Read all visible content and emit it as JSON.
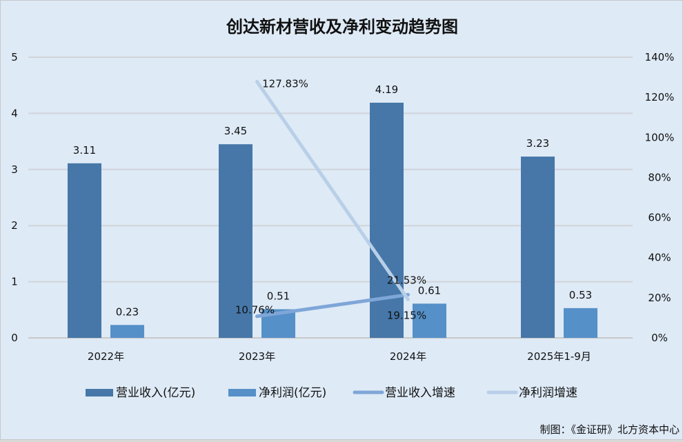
{
  "chart_data": {
    "type": "bar",
    "title": "创达新材营收及净利变动趋势图",
    "categories": [
      "2022年",
      "2023年",
      "2024年",
      "2025年1-9月"
    ],
    "series": [
      {
        "name": "营业收入(亿元)",
        "kind": "bar",
        "axis": "left",
        "color": "#4677a8",
        "values": [
          3.11,
          3.45,
          4.19,
          3.23
        ],
        "labels": [
          "3.11",
          "3.45",
          "4.19",
          "3.23"
        ]
      },
      {
        "name": "净利润(亿元)",
        "kind": "bar",
        "axis": "left",
        "color": "#5590c8",
        "values": [
          0.23,
          0.51,
          0.61,
          0.53
        ],
        "labels": [
          "0.23",
          "0.51",
          "0.61",
          "0.53"
        ]
      },
      {
        "name": "营业收入增速",
        "kind": "line",
        "axis": "right",
        "color": "#7fa6d8",
        "values": [
          null,
          10.76,
          21.53,
          null
        ],
        "labels": [
          "",
          "10.76%",
          "21.53%",
          ""
        ]
      },
      {
        "name": "净利润增速",
        "kind": "line",
        "axis": "right",
        "color": "#b9cfe8",
        "values": [
          null,
          127.83,
          19.15,
          null
        ],
        "labels": [
          "",
          "127.83%",
          "19.15%",
          ""
        ]
      }
    ],
    "ylim": [
      0,
      5
    ],
    "yticks": [
      "0",
      "1",
      "2",
      "3",
      "4",
      "5"
    ],
    "y2lim": [
      0,
      140
    ],
    "y2ticks": [
      "0%",
      "20%",
      "40%",
      "60%",
      "80%",
      "100%",
      "120%",
      "140%"
    ],
    "grid": true,
    "legend": "bottom"
  },
  "source": "制图：《金证研》北方资本中心"
}
